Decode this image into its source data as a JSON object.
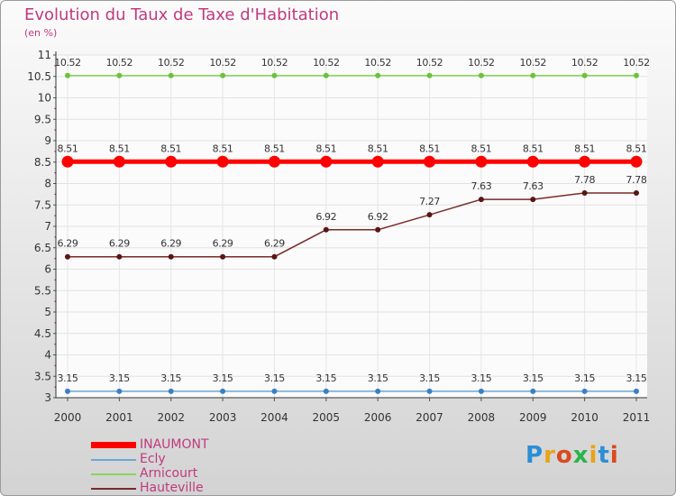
{
  "title": "Evolution du Taux de Taxe d'Habitation",
  "subtitle": "(en %)",
  "logo": "Proxiti",
  "chart_data": {
    "type": "line",
    "title": "Evolution du Taux de Taxe d'Habitation",
    "ylabel": "(en %)",
    "xlabel": "",
    "x": [
      "2000",
      "2001",
      "2002",
      "2003",
      "2004",
      "2005",
      "2006",
      "2007",
      "2008",
      "2009",
      "2010",
      "2011"
    ],
    "ylim": [
      3,
      11
    ],
    "yticks": [
      "3",
      "3.5",
      "4",
      "4.5",
      "5",
      "5.5",
      "6",
      "6.5",
      "7",
      "7.5",
      "8",
      "8.5",
      "9",
      "9.5",
      "10",
      "10.5",
      "11"
    ],
    "grid": true,
    "legend_position": "bottom-left",
    "series": [
      {
        "name": "INAUMONT",
        "color": "#ff0000",
        "values": [
          8.51,
          8.51,
          8.51,
          8.51,
          8.51,
          8.51,
          8.51,
          8.51,
          8.51,
          8.51,
          8.51,
          8.51
        ]
      },
      {
        "name": "Ecly",
        "color": "#6aa6d8",
        "values": [
          3.15,
          3.15,
          3.15,
          3.15,
          3.15,
          3.15,
          3.15,
          3.15,
          3.15,
          3.15,
          3.15,
          3.15
        ]
      },
      {
        "name": "Arnicourt",
        "color": "#8ad45a",
        "values": [
          10.52,
          10.52,
          10.52,
          10.52,
          10.52,
          10.52,
          10.52,
          10.52,
          10.52,
          10.52,
          10.52,
          10.52
        ]
      },
      {
        "name": "Hauteville",
        "color": "#7a2a2a",
        "values": [
          6.29,
          6.29,
          6.29,
          6.29,
          6.29,
          6.92,
          6.92,
          7.27,
          7.63,
          7.63,
          7.78,
          7.78
        ]
      }
    ]
  }
}
